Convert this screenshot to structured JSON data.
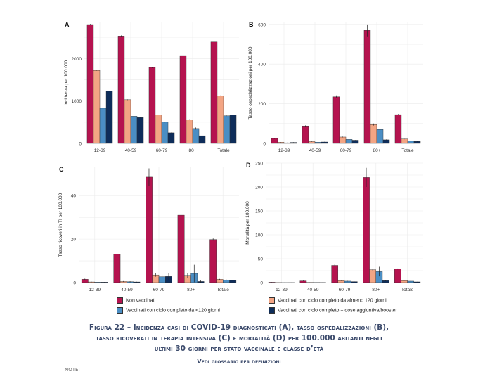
{
  "caption": {
    "line1": "Figura 22 – Incidenza casi di COVID-19 diagnosticati (A), tasso ospedalizzazioni (B),",
    "line2": "tasso ricoverati in terapia intensiva (C) e mortalità (D) per 100.000 abitanti negli",
    "line3": "ultimi 30 giorni per stato vaccinale e classe d’età",
    "sub": "Vedi glossario per definizioni",
    "note": "NOTE:"
  },
  "colors": {
    "series": [
      "#b5134f",
      "#f3a584",
      "#4b8ec4",
      "#0e2d5a"
    ],
    "grid": "#ebebeb",
    "panel_bg": "#ffffff",
    "error_bar": "#222222"
  },
  "chart_data": [
    {
      "panel": "A",
      "type": "bar",
      "ylabel": "Incidenza per 100.000",
      "categories": [
        "12-39",
        "40-59",
        "60-79",
        "80+",
        "Totale"
      ],
      "ylim": [
        0,
        2850
      ],
      "yticks": [
        0,
        1000,
        2000
      ],
      "grid": true,
      "series": [
        {
          "name": "Non vaccinati",
          "values": [
            2800,
            2530,
            1790,
            2070,
            2390
          ],
          "err": [
            15,
            15,
            15,
            50,
            10
          ]
        },
        {
          "name": "Vaccinati con ciclo completo da almeno 120 giorni",
          "values": [
            1720,
            1030,
            670,
            560,
            1120
          ],
          "err": [
            8,
            8,
            8,
            8,
            8
          ]
        },
        {
          "name": "Vaccinati con ciclo completo da <120 giorni",
          "values": [
            830,
            640,
            500,
            350,
            650
          ],
          "err": [
            6,
            6,
            6,
            25,
            6
          ]
        },
        {
          "name": "Vaccinati con ciclo completo + dose aggiuntiva/booster",
          "values": [
            1230,
            610,
            250,
            180,
            670
          ],
          "err": [
            8,
            6,
            6,
            8,
            6
          ]
        }
      ]
    },
    {
      "panel": "B",
      "type": "bar",
      "ylabel": "Tasso ospedalizzazioni per 100.000",
      "categories": [
        "12-39",
        "40-59",
        "60-79",
        "80+",
        "Totale"
      ],
      "ylim": [
        0,
        610
      ],
      "yticks": [
        0,
        200,
        400,
        600
      ],
      "grid": true,
      "series": [
        {
          "name": "Non vaccinati",
          "values": [
            25,
            88,
            235,
            570,
            145
          ],
          "err": [
            2,
            3,
            7,
            30,
            3
          ]
        },
        {
          "name": "Vaccinati con ciclo completo da almeno 120 giorni",
          "values": [
            6,
            9,
            32,
            95,
            22
          ],
          "err": [
            1,
            1,
            2,
            5,
            1
          ]
        },
        {
          "name": "Vaccinati con ciclo completo da <120 giorni",
          "values": [
            3,
            6,
            20,
            70,
            12
          ],
          "err": [
            1,
            1,
            2,
            15,
            1
          ]
        },
        {
          "name": "Vaccinati con ciclo completo + dose aggiuntiva/booster",
          "values": [
            5,
            7,
            16,
            18,
            10
          ],
          "err": [
            1,
            1,
            1,
            2,
            1
          ]
        }
      ]
    },
    {
      "panel": "C",
      "type": "bar",
      "ylabel": "Tasso ricoveri in TI per 100.000",
      "categories": [
        "12-39",
        "40-59",
        "60-79",
        "80+",
        "Totale"
      ],
      "ylim": [
        0,
        53
      ],
      "yticks": [
        0,
        20,
        40
      ],
      "grid": true,
      "series": [
        {
          "name": "Non vaccinati",
          "values": [
            1.5,
            13,
            48.5,
            31,
            19.8
          ],
          "err": [
            0.3,
            1.2,
            4,
            8,
            0.5
          ]
        },
        {
          "name": "Vaccinati con ciclo completo da almeno 120 giorni",
          "values": [
            0.3,
            0.5,
            3.5,
            3.3,
            1.5
          ],
          "err": [
            0.1,
            0.2,
            0.8,
            1.2,
            0.2
          ]
        },
        {
          "name": "Vaccinati con ciclo completo da <120 giorni",
          "values": [
            0.2,
            0.4,
            2.7,
            4.2,
            1.2
          ],
          "err": [
            0.1,
            0.2,
            1,
            4,
            0.2
          ]
        },
        {
          "name": "Vaccinati con ciclo completo + dose aggiuntiva/booster",
          "values": [
            0.2,
            0.3,
            2.8,
            0.5,
            1.0
          ],
          "err": [
            0.1,
            0.1,
            1.5,
            0.5,
            0.2
          ]
        }
      ]
    },
    {
      "panel": "D",
      "type": "bar",
      "ylabel": "Mortalità per 100.000",
      "categories": [
        "12-39",
        "40-59",
        "60-79",
        "80+",
        "Totale"
      ],
      "ylim": [
        0,
        250
      ],
      "yticks": [
        0,
        50,
        100,
        150,
        200,
        250
      ],
      "grid": true,
      "series": [
        {
          "name": "Non vaccinati",
          "values": [
            0.8,
            3.5,
            36,
            220,
            28.5
          ],
          "err": [
            0.3,
            0.8,
            3,
            20,
            1
          ]
        },
        {
          "name": "Vaccinati con ciclo completo da almeno 120 giorni",
          "values": [
            0.2,
            0.5,
            4,
            27,
            4
          ],
          "err": [
            0.1,
            0.2,
            0.5,
            2,
            0.3
          ]
        },
        {
          "name": "Vaccinati con ciclo completo da <120 giorni",
          "values": [
            0.1,
            0.3,
            3,
            23,
            3
          ],
          "err": [
            0.1,
            0.2,
            0.5,
            10,
            0.3
          ]
        },
        {
          "name": "Vaccinati con ciclo completo + dose aggiuntiva/booster",
          "values": [
            0.1,
            0.2,
            2,
            4,
            1.5
          ],
          "err": [
            0.1,
            0.1,
            0.5,
            1,
            0.2
          ]
        }
      ]
    }
  ],
  "legend": [
    "Non vaccinati",
    "Vaccinati con ciclo completo da almeno 120 giorni",
    "Vaccinati con ciclo completo da <120 giorni",
    "Vaccinati con ciclo completo + dose aggiuntiva/booster"
  ]
}
